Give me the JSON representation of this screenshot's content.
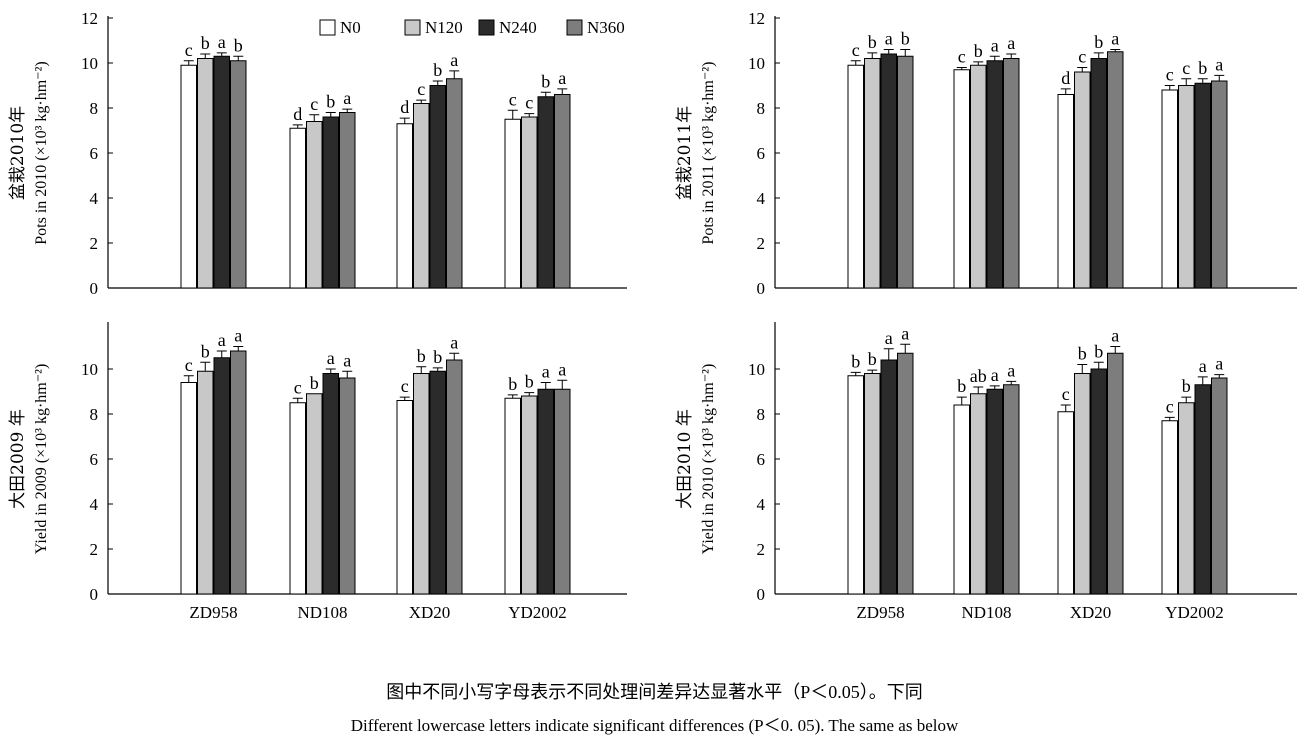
{
  "legend": {
    "labels": [
      "N0",
      "N120",
      "N240",
      "N360"
    ]
  },
  "colors": {
    "N0": "#ffffff",
    "N120": "#c8c8c8",
    "N240": "#2b2b2b",
    "N360": "#7d7d7d",
    "stroke": "#000000"
  },
  "caption": {
    "cn": "图中不同小写字母表示不同处理间差异达显著水平（P＜0.05）。下同",
    "en": "Different lowercase letters indicate significant differences (P＜0. 05). The same as below"
  },
  "chart_data": [
    {
      "type": "bar",
      "ylabel_cn": "盆栽2010年",
      "ylabel_en": "Pots in 2010 (×10³ kg·hm⁻²)",
      "ylim": [
        0,
        12
      ],
      "yticks": [
        0,
        2,
        4,
        6,
        8,
        10,
        12
      ],
      "categories": [
        "ZD958",
        "ND108",
        "XD20",
        "YD2002"
      ],
      "series": [
        {
          "name": "N0",
          "values": [
            9.9,
            7.1,
            7.3,
            7.5
          ],
          "errors": [
            0.2,
            0.15,
            0.25,
            0.4
          ],
          "letters": [
            "c",
            "d",
            "d",
            "c"
          ]
        },
        {
          "name": "N120",
          "values": [
            10.2,
            7.4,
            8.2,
            7.6
          ],
          "errors": [
            0.2,
            0.3,
            0.15,
            0.15
          ],
          "letters": [
            "b",
            "c",
            "c",
            "c"
          ]
        },
        {
          "name": "N240",
          "values": [
            10.3,
            7.6,
            9.0,
            8.5
          ],
          "errors": [
            0.15,
            0.2,
            0.2,
            0.2
          ],
          "letters": [
            "a",
            "b",
            "b",
            "b"
          ]
        },
        {
          "name": "N360",
          "values": [
            10.1,
            7.8,
            9.3,
            8.6
          ],
          "errors": [
            0.2,
            0.15,
            0.35,
            0.25
          ],
          "letters": [
            "b",
            "a",
            "a",
            "a"
          ]
        }
      ]
    },
    {
      "type": "bar",
      "ylabel_cn": "盆栽2011年",
      "ylabel_en": "Pots in 2011 (×10³ kg·hm⁻²)",
      "ylim": [
        0,
        12
      ],
      "yticks": [
        0,
        2,
        4,
        6,
        8,
        10,
        12
      ],
      "categories": [
        "ZD958",
        "ND108",
        "XD20",
        "YD2002"
      ],
      "series": [
        {
          "name": "N0",
          "values": [
            9.9,
            9.7,
            8.6,
            8.8
          ],
          "errors": [
            0.2,
            0.1,
            0.25,
            0.2
          ],
          "letters": [
            "c",
            "c",
            "d",
            "c"
          ]
        },
        {
          "name": "N120",
          "values": [
            10.2,
            9.9,
            9.6,
            9.0
          ],
          "errors": [
            0.25,
            0.15,
            0.2,
            0.3
          ],
          "letters": [
            "b",
            "b",
            "c",
            "c"
          ]
        },
        {
          "name": "N240",
          "values": [
            10.4,
            10.1,
            10.2,
            9.1
          ],
          "errors": [
            0.2,
            0.2,
            0.25,
            0.2
          ],
          "letters": [
            "a",
            "a",
            "b",
            "b"
          ]
        },
        {
          "name": "N360",
          "values": [
            10.3,
            10.2,
            10.5,
            9.2
          ],
          "errors": [
            0.3,
            0.2,
            0.1,
            0.25
          ],
          "letters": [
            "b",
            "a",
            "a",
            "a"
          ]
        }
      ]
    },
    {
      "type": "bar",
      "ylabel_cn": "大田2009 年",
      "ylabel_en": "Yield in 2009 (×10³ kg·hm⁻²)",
      "ylim": [
        0,
        12
      ],
      "yticks": [
        0,
        2,
        4,
        6,
        8,
        10
      ],
      "categories": [
        "ZD958",
        "ND108",
        "XD20",
        "YD2002"
      ],
      "series": [
        {
          "name": "N0",
          "values": [
            9.4,
            8.5,
            8.6,
            8.7
          ],
          "errors": [
            0.3,
            0.2,
            0.15,
            0.15
          ],
          "letters": [
            "c",
            "c",
            "c",
            "b"
          ]
        },
        {
          "name": "N120",
          "values": [
            9.9,
            8.9,
            9.8,
            8.8
          ],
          "errors": [
            0.4,
            0.0,
            0.3,
            0.15
          ],
          "letters": [
            "b",
            "b",
            "b",
            "b"
          ]
        },
        {
          "name": "N240",
          "values": [
            10.5,
            9.8,
            9.9,
            9.1
          ],
          "errors": [
            0.3,
            0.2,
            0.15,
            0.3
          ],
          "letters": [
            "a",
            "a",
            "b",
            "a"
          ]
        },
        {
          "name": "N360",
          "values": [
            10.8,
            9.6,
            10.4,
            9.1
          ],
          "errors": [
            0.2,
            0.3,
            0.3,
            0.4
          ],
          "letters": [
            "a",
            "a",
            "a",
            "a"
          ]
        }
      ]
    },
    {
      "type": "bar",
      "ylabel_cn": "大田2010 年",
      "ylabel_en": "Yield in 2010 (×10³ kg·hm⁻²)",
      "ylim": [
        0,
        12
      ],
      "yticks": [
        0,
        2,
        4,
        6,
        8,
        10
      ],
      "categories": [
        "ZD958",
        "ND108",
        "XD20",
        "YD2002"
      ],
      "series": [
        {
          "name": "N0",
          "values": [
            9.7,
            8.4,
            8.1,
            7.7
          ],
          "errors": [
            0.15,
            0.35,
            0.3,
            0.15
          ],
          "letters": [
            "b",
            "b",
            "c",
            "c"
          ]
        },
        {
          "name": "N120",
          "values": [
            9.8,
            8.9,
            9.8,
            8.5
          ],
          "errors": [
            0.15,
            0.3,
            0.4,
            0.25
          ],
          "letters": [
            "b",
            "ab",
            "b",
            "b"
          ]
        },
        {
          "name": "N240",
          "values": [
            10.4,
            9.1,
            10.0,
            9.3
          ],
          "errors": [
            0.5,
            0.15,
            0.3,
            0.35
          ],
          "letters": [
            "a",
            "a",
            "b",
            "a"
          ]
        },
        {
          "name": "N360",
          "values": [
            10.7,
            9.3,
            10.7,
            9.6
          ],
          "errors": [
            0.4,
            0.15,
            0.3,
            0.15
          ],
          "letters": [
            "a",
            "a",
            "a",
            "a"
          ]
        }
      ]
    }
  ]
}
